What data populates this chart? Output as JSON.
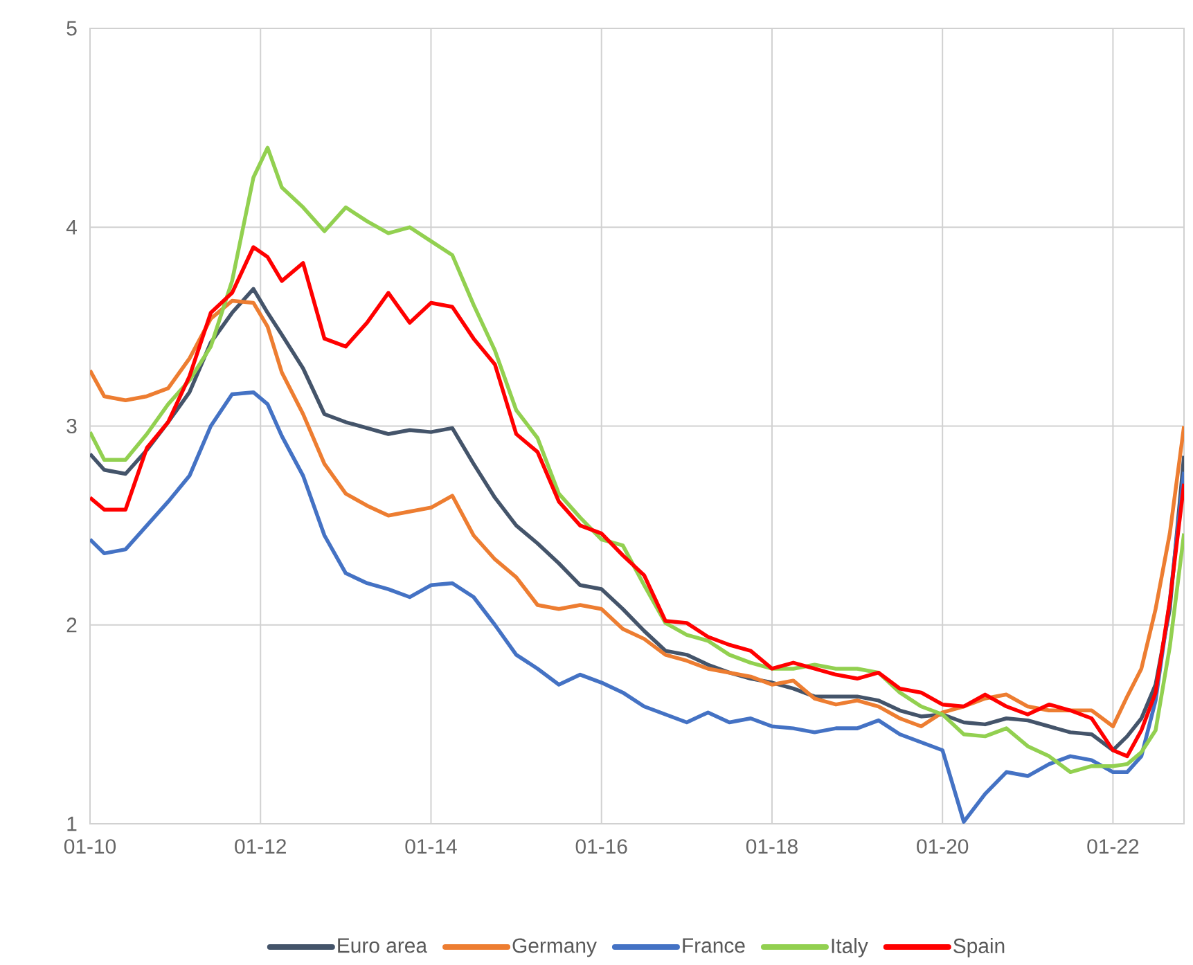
{
  "chart_data": {
    "type": "line",
    "x": [
      "2010-01",
      "2010-03",
      "2010-06",
      "2010-09",
      "2010-12",
      "2011-03",
      "2011-06",
      "2011-09",
      "2011-12",
      "2012-02",
      "2012-04",
      "2012-07",
      "2012-10",
      "2013-01",
      "2013-04",
      "2013-07",
      "2013-10",
      "2014-01",
      "2014-04",
      "2014-07",
      "2014-10",
      "2015-01",
      "2015-04",
      "2015-07",
      "2015-10",
      "2016-01",
      "2016-04",
      "2016-07",
      "2016-10",
      "2017-01",
      "2017-04",
      "2017-07",
      "2017-10",
      "2018-01",
      "2018-04",
      "2018-07",
      "2018-10",
      "2019-01",
      "2019-04",
      "2019-07",
      "2019-10",
      "2020-01",
      "2020-04",
      "2020-07",
      "2020-10",
      "2021-01",
      "2021-04",
      "2021-07",
      "2021-10",
      "2022-01",
      "2022-03",
      "2022-05",
      "2022-07",
      "2022-09",
      "2022-11"
    ],
    "series": [
      {
        "name": "Euro area",
        "color": "#44546a",
        "values": [
          2.86,
          2.78,
          2.76,
          2.88,
          3.02,
          3.17,
          3.42,
          3.57,
          3.69,
          3.57,
          3.46,
          3.29,
          3.06,
          3.02,
          2.99,
          2.96,
          2.98,
          2.97,
          2.99,
          2.81,
          2.64,
          2.5,
          2.41,
          2.31,
          2.2,
          2.18,
          2.08,
          1.97,
          1.87,
          1.85,
          1.8,
          1.76,
          1.73,
          1.71,
          1.68,
          1.64,
          1.64,
          1.64,
          1.62,
          1.57,
          1.54,
          1.55,
          1.51,
          1.5,
          1.53,
          1.52,
          1.49,
          1.46,
          1.45,
          1.37,
          1.44,
          1.53,
          1.7,
          2.08,
          2.85
        ]
      },
      {
        "name": "Germany",
        "color": "#ed7d31",
        "values": [
          3.28,
          3.15,
          3.13,
          3.15,
          3.19,
          3.34,
          3.54,
          3.63,
          3.62,
          3.5,
          3.27,
          3.06,
          2.81,
          2.66,
          2.6,
          2.55,
          2.57,
          2.59,
          2.65,
          2.45,
          2.33,
          2.24,
          2.1,
          2.08,
          2.1,
          2.08,
          1.98,
          1.93,
          1.85,
          1.82,
          1.78,
          1.76,
          1.74,
          1.7,
          1.72,
          1.63,
          1.6,
          1.62,
          1.59,
          1.53,
          1.49,
          1.56,
          1.59,
          1.63,
          1.65,
          1.59,
          1.57,
          1.57,
          1.57,
          1.49,
          1.64,
          1.78,
          2.08,
          2.46,
          3.0
        ]
      },
      {
        "name": "France",
        "color": "#4472c4",
        "values": [
          2.43,
          2.36,
          2.38,
          2.5,
          2.62,
          2.75,
          3.0,
          3.16,
          3.17,
          3.11,
          2.95,
          2.75,
          2.45,
          2.26,
          2.21,
          2.18,
          2.14,
          2.2,
          2.21,
          2.14,
          2.0,
          1.85,
          1.78,
          1.7,
          1.75,
          1.71,
          1.66,
          1.59,
          1.55,
          1.51,
          1.56,
          1.51,
          1.53,
          1.49,
          1.48,
          1.46,
          1.48,
          1.48,
          1.52,
          1.45,
          1.41,
          1.37,
          1.01,
          1.15,
          1.26,
          1.24,
          1.3,
          1.34,
          1.32,
          1.26,
          1.26,
          1.34,
          1.62,
          2.12,
          2.77
        ]
      },
      {
        "name": "Italy",
        "color": "#92d050",
        "values": [
          2.97,
          2.83,
          2.83,
          2.96,
          3.11,
          3.23,
          3.4,
          3.73,
          4.25,
          4.4,
          4.2,
          4.1,
          3.98,
          4.1,
          4.03,
          3.97,
          4.0,
          3.93,
          3.86,
          3.61,
          3.38,
          3.08,
          2.94,
          2.66,
          2.54,
          2.43,
          2.4,
          2.2,
          2.01,
          1.95,
          1.92,
          1.85,
          1.81,
          1.78,
          1.78,
          1.8,
          1.78,
          1.78,
          1.76,
          1.66,
          1.59,
          1.55,
          1.45,
          1.44,
          1.48,
          1.39,
          1.34,
          1.26,
          1.29,
          1.29,
          1.3,
          1.36,
          1.47,
          1.89,
          2.46
        ]
      },
      {
        "name": "Spain",
        "color": "#ff0000",
        "values": [
          2.64,
          2.58,
          2.58,
          2.89,
          3.02,
          3.25,
          3.57,
          3.67,
          3.9,
          3.85,
          3.73,
          3.82,
          3.44,
          3.4,
          3.52,
          3.67,
          3.52,
          3.62,
          3.6,
          3.44,
          3.31,
          2.96,
          2.87,
          2.62,
          2.5,
          2.46,
          2.35,
          2.25,
          2.02,
          2.01,
          1.94,
          1.9,
          1.87,
          1.78,
          1.81,
          1.78,
          1.75,
          1.73,
          1.76,
          1.68,
          1.66,
          1.6,
          1.59,
          1.65,
          1.59,
          1.55,
          1.6,
          1.57,
          1.53,
          1.37,
          1.34,
          1.47,
          1.66,
          2.12,
          2.71
        ]
      }
    ],
    "xlim": [
      "2010-01",
      "2022-11"
    ],
    "xticks": [
      {
        "value": "2010-01",
        "label": "01-10"
      },
      {
        "value": "2012-01",
        "label": "01-12"
      },
      {
        "value": "2014-01",
        "label": "01-14"
      },
      {
        "value": "2016-01",
        "label": "01-16"
      },
      {
        "value": "2018-01",
        "label": "01-18"
      },
      {
        "value": "2020-01",
        "label": "01-20"
      },
      {
        "value": "2022-01",
        "label": "01-22"
      }
    ],
    "ylim": [
      1,
      5
    ],
    "yticks": [
      1,
      2,
      3,
      4,
      5
    ],
    "grid": true,
    "legend": "bottom"
  }
}
